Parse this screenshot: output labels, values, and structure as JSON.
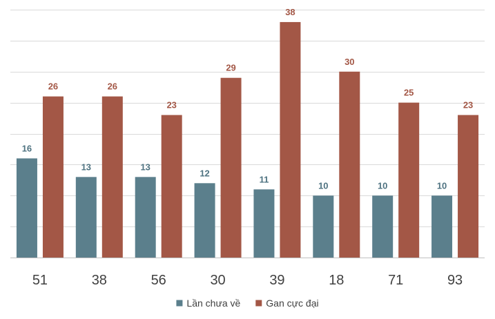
{
  "chart_data": {
    "type": "bar",
    "categories": [
      "51",
      "38",
      "56",
      "30",
      "39",
      "18",
      "71",
      "93"
    ],
    "series": [
      {
        "name": "Lần chưa về",
        "color": "#5b7f8c",
        "label_color": "#4f7381",
        "values": [
          16,
          13,
          13,
          12,
          11,
          10,
          10,
          10
        ]
      },
      {
        "name": "Gan cực đại",
        "color": "#a35746",
        "label_color": "#a35746",
        "values": [
          26,
          26,
          23,
          29,
          38,
          30,
          25,
          23
        ]
      }
    ],
    "title": "",
    "xlabel": "",
    "ylabel": "",
    "ylim": [
      0,
      40
    ],
    "grid": true,
    "legend_position": "bottom-center"
  }
}
